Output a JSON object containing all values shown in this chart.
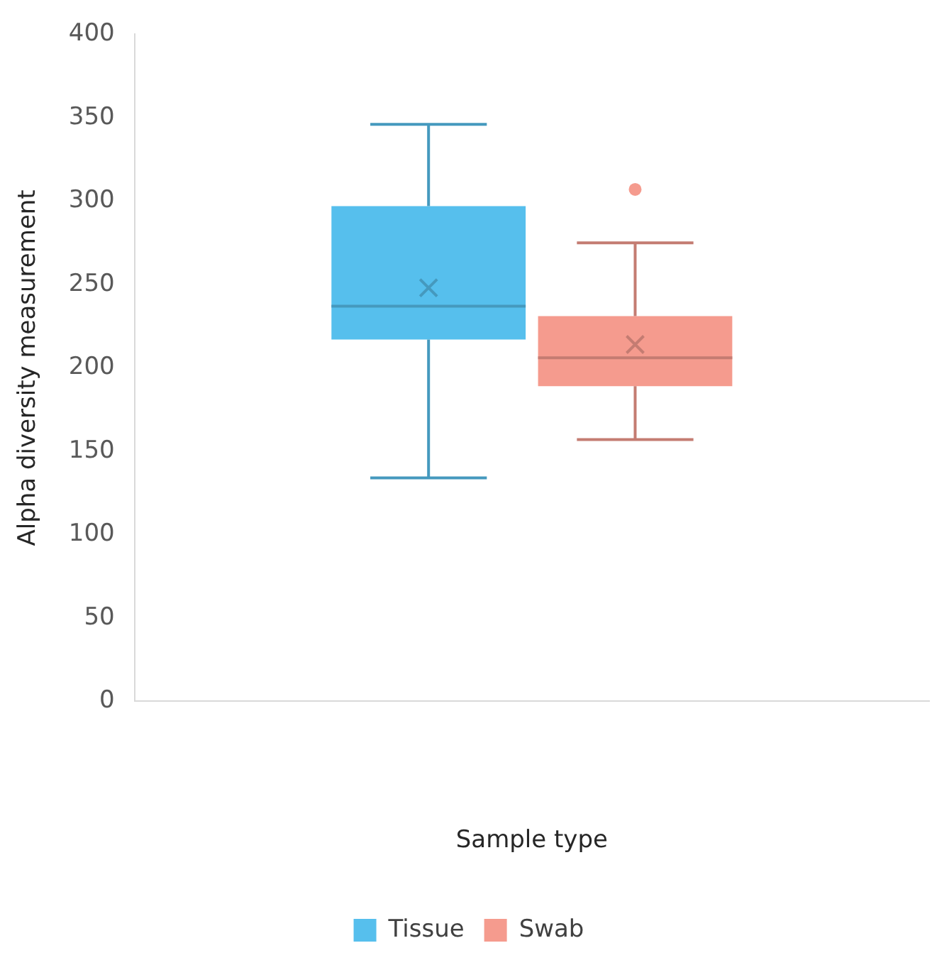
{
  "chart_data": {
    "type": "box",
    "xlabel": "Sample type",
    "ylabel": "Alpha diversity measurement",
    "categories": [
      null
    ],
    "series": [
      {
        "name": "Tissue",
        "color": "#56bfed",
        "boxes": [
          {
            "low": 134,
            "q1": 217,
            "median": 237,
            "q3": 297,
            "high": 346,
            "mean": 248
          }
        ]
      },
      {
        "name": "Swab",
        "color": "#f59b8e",
        "boxes": [
          {
            "low": 157,
            "q1": 189,
            "median": 206,
            "q3": 231,
            "high": 275,
            "mean": 214,
            "outliers": [
              307
            ]
          }
        ]
      }
    ],
    "ylim": [
      0,
      400
    ],
    "yticks": [
      0,
      50,
      100,
      150,
      200,
      250,
      300,
      350,
      400
    ],
    "grid": false,
    "legend": "bottom"
  }
}
